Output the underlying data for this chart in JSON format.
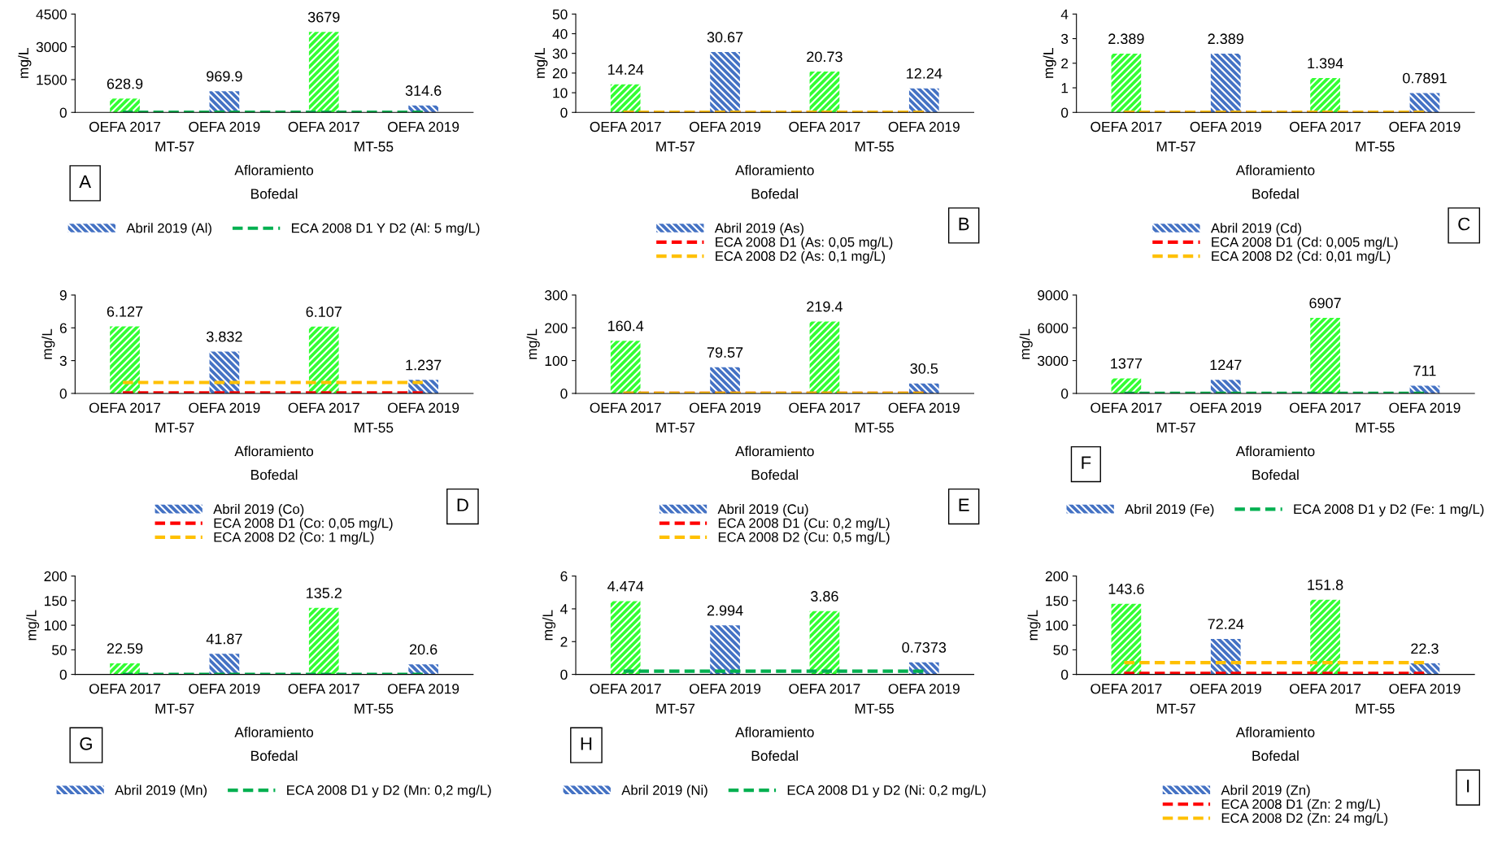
{
  "chart_data": [
    {
      "type": "bar",
      "title": "A",
      "ylabel": "mg/L",
      "categories": [
        "OEFA 2017",
        "OEFA 2019",
        "OEFA 2017",
        "OEFA 2019"
      ],
      "annotations": [
        "MT-57",
        "MT-55",
        "Afloramiento",
        "Bofedal"
      ],
      "series": [
        {
          "name": "Abril 2019 (Al)",
          "color": "#4472c4",
          "colors": [
            "#33ff33",
            "#4472c4",
            "#33ff33",
            "#4472c4"
          ],
          "values": [
            628.9,
            969.9,
            3679,
            314.6
          ]
        }
      ],
      "ylim": [
        0,
        4500
      ],
      "yticks": [
        0,
        1500,
        3000,
        4500
      ],
      "data_labels": true,
      "legend": "bottom",
      "grid": false,
      "ref_lines": [
        {
          "axis": "y",
          "value": 5,
          "label": "ECA 2008 D1 Y D2 (Al: 5 mg/L)",
          "color": "#00b050",
          "line_style": "dashed"
        }
      ]
    },
    {
      "type": "bar",
      "title": "B",
      "ylabel": "mg/L",
      "categories": [
        "OEFA 2017",
        "OEFA 2019",
        "OEFA 2017",
        "OEFA 2019"
      ],
      "annotations": [
        "MT-57",
        "MT-55",
        "Afloramiento",
        "Bofedal"
      ],
      "series": [
        {
          "name": "Abril 2019 (As)",
          "color": "#4472c4",
          "colors": [
            "#33ff33",
            "#4472c4",
            "#33ff33",
            "#4472c4"
          ],
          "values": [
            14.24,
            30.67,
            20.73,
            12.24
          ]
        }
      ],
      "ylim": [
        0,
        50
      ],
      "yticks": [
        0,
        10,
        20,
        30,
        40,
        50
      ],
      "data_labels": true,
      "legend": "bottom",
      "grid": false,
      "ref_lines": [
        {
          "axis": "y",
          "value": 0.05,
          "label": "ECA 2008 D1 (As: 0,05 mg/L)",
          "color": "#ff0000",
          "line_style": "dashed"
        },
        {
          "axis": "y",
          "value": 0.1,
          "label": "ECA 2008 D2 (As: 0,1 mg/L)",
          "color": "#ffc000",
          "line_style": "dashed"
        }
      ]
    },
    {
      "type": "bar",
      "title": "C",
      "ylabel": "mg/L",
      "categories": [
        "OEFA 2017",
        "OEFA 2019",
        "OEFA 2017",
        "OEFA 2019"
      ],
      "annotations": [
        "MT-57",
        "MT-55",
        "Afloramiento",
        "Bofedal"
      ],
      "series": [
        {
          "name": "Abril 2019 (Cd)",
          "color": "#4472c4",
          "colors": [
            "#33ff33",
            "#4472c4",
            "#33ff33",
            "#4472c4"
          ],
          "values": [
            2.389,
            2.389,
            1.394,
            0.7891
          ]
        }
      ],
      "ylim": [
        0,
        4
      ],
      "yticks": [
        0,
        1,
        2,
        3,
        4
      ],
      "data_labels": true,
      "legend": "bottom",
      "grid": false,
      "ref_lines": [
        {
          "axis": "y",
          "value": 0.005,
          "label": "ECA 2008 D1 (Cd: 0,005 mg/L)",
          "color": "#ff0000",
          "line_style": "dashed"
        },
        {
          "axis": "y",
          "value": 0.01,
          "label": "ECA 2008 D2 (Cd: 0,01 mg/L)",
          "color": "#ffc000",
          "line_style": "dashed"
        }
      ]
    },
    {
      "type": "bar",
      "title": "D",
      "ylabel": "mg/L",
      "categories": [
        "OEFA 2017",
        "OEFA 2019",
        "OEFA 2017",
        "OEFA 2019"
      ],
      "annotations": [
        "MT-57",
        "MT-55",
        "Afloramiento",
        "Bofedal"
      ],
      "series": [
        {
          "name": "Abril 2019 (Co)",
          "color": "#4472c4",
          "colors": [
            "#33ff33",
            "#4472c4",
            "#33ff33",
            "#4472c4"
          ],
          "values": [
            6.127,
            3.832,
            6.107,
            1.237
          ]
        }
      ],
      "ylim": [
        0,
        9
      ],
      "yticks": [
        0,
        3,
        6,
        9
      ],
      "data_labels": true,
      "legend": "bottom",
      "grid": false,
      "ref_lines": [
        {
          "axis": "y",
          "value": 0.05,
          "label": "ECA 2008 D1 (Co: 0,05 mg/L)",
          "color": "#ff0000",
          "line_style": "dashed"
        },
        {
          "axis": "y",
          "value": 1,
          "label": "ECA 2008 D2 (Co: 1 mg/L)",
          "color": "#ffc000",
          "line_style": "dashed"
        }
      ]
    },
    {
      "type": "bar",
      "title": "E",
      "ylabel": "mg/L",
      "categories": [
        "OEFA 2017",
        "OEFA 2019",
        "OEFA 2017",
        "OEFA 2019"
      ],
      "annotations": [
        "MT-57",
        "MT-55",
        "Afloramiento",
        "Bofedal"
      ],
      "series": [
        {
          "name": "Abril 2019 (Cu)",
          "color": "#4472c4",
          "colors": [
            "#33ff33",
            "#4472c4",
            "#33ff33",
            "#4472c4"
          ],
          "values": [
            160.4,
            79.57,
            219.4,
            30.5
          ]
        }
      ],
      "ylim": [
        0,
        300
      ],
      "yticks": [
        0,
        100,
        200,
        300
      ],
      "data_labels": true,
      "legend": "bottom",
      "grid": false,
      "ref_lines": [
        {
          "axis": "y",
          "value": 0.2,
          "label": "ECA 2008 D1 (Cu: 0,2 mg/L)",
          "color": "#ff0000",
          "line_style": "dashed"
        },
        {
          "axis": "y",
          "value": 0.5,
          "label": "ECA 2008 D2 (Cu: 0,5 mg/L)",
          "color": "#ffc000",
          "line_style": "dashed"
        }
      ]
    },
    {
      "type": "bar",
      "title": "F",
      "ylabel": "mg/L",
      "categories": [
        "OEFA 2017",
        "OEFA 2019",
        "OEFA 2017",
        "OEFA 2019"
      ],
      "annotations": [
        "MT-57",
        "MT-55",
        "Afloramiento",
        "Bofedal"
      ],
      "series": [
        {
          "name": "Abril 2019 (Fe)",
          "color": "#4472c4",
          "colors": [
            "#33ff33",
            "#4472c4",
            "#33ff33",
            "#4472c4"
          ],
          "values": [
            1377,
            1247,
            6907,
            711
          ]
        }
      ],
      "ylim": [
        0,
        9000
      ],
      "yticks": [
        0,
        3000,
        6000,
        9000
      ],
      "data_labels": true,
      "legend": "bottom",
      "grid": false,
      "ref_lines": [
        {
          "axis": "y",
          "value": 1,
          "label": "ECA 2008 D1 y D2 (Fe: 1 mg/L)",
          "color": "#00b050",
          "line_style": "dashed"
        }
      ]
    },
    {
      "type": "bar",
      "title": "G",
      "ylabel": "mg/L",
      "categories": [
        "OEFA 2017",
        "OEFA 2019",
        "OEFA 2017",
        "OEFA 2019"
      ],
      "annotations": [
        "MT-57",
        "MT-55",
        "Afloramiento",
        "Bofedal"
      ],
      "series": [
        {
          "name": "Abril 2019 (Mn)",
          "color": "#4472c4",
          "colors": [
            "#33ff33",
            "#4472c4",
            "#33ff33",
            "#4472c4"
          ],
          "values": [
            22.59,
            41.87,
            135.2,
            20.6
          ]
        }
      ],
      "ylim": [
        0,
        200
      ],
      "yticks": [
        0,
        50,
        100,
        150,
        200
      ],
      "data_labels": true,
      "legend": "bottom",
      "grid": false,
      "ref_lines": [
        {
          "axis": "y",
          "value": 0.2,
          "label": "ECA 2008 D1 y D2 (Mn: 0,2 mg/L)",
          "color": "#00b050",
          "line_style": "dashed"
        }
      ]
    },
    {
      "type": "bar",
      "title": "H",
      "ylabel": "mg/L",
      "categories": [
        "OEFA 2017",
        "OEFA 2019",
        "OEFA 2017",
        "OEFA 2019"
      ],
      "annotations": [
        "MT-57",
        "MT-55",
        "Afloramiento",
        "Bofedal"
      ],
      "series": [
        {
          "name": "Abril 2019 (Ni)",
          "color": "#4472c4",
          "colors": [
            "#33ff33",
            "#4472c4",
            "#33ff33",
            "#4472c4"
          ],
          "values": [
            4.474,
            2.994,
            3.86,
            0.7373
          ]
        }
      ],
      "ylim": [
        0,
        6
      ],
      "yticks": [
        0,
        2,
        4,
        6
      ],
      "data_labels": true,
      "legend": "bottom",
      "grid": false,
      "ref_lines": [
        {
          "axis": "y",
          "value": 0.2,
          "label": "ECA 2008 D1 y D2 (Ni: 0,2 mg/L)",
          "color": "#00b050",
          "line_style": "dashed"
        }
      ]
    },
    {
      "type": "bar",
      "title": "I",
      "ylabel": "mg/L",
      "categories": [
        "OEFA 2017",
        "OEFA 2019",
        "OEFA 2017",
        "OEFA 2019"
      ],
      "annotations": [
        "MT-57",
        "MT-55",
        "Afloramiento",
        "Bofedal"
      ],
      "series": [
        {
          "name": "Abril 2019 (Zn)",
          "color": "#4472c4",
          "colors": [
            "#33ff33",
            "#4472c4",
            "#33ff33",
            "#4472c4"
          ],
          "values": [
            143.6,
            72.24,
            151.8,
            22.3
          ]
        }
      ],
      "ylim": [
        0,
        200
      ],
      "yticks": [
        0,
        50,
        100,
        150,
        200
      ],
      "data_labels": true,
      "legend": "bottom",
      "grid": false,
      "ref_lines": [
        {
          "axis": "y",
          "value": 2,
          "label": "ECA 2008 D1 (Zn: 2 mg/L)",
          "color": "#ff0000",
          "line_style": "dashed"
        },
        {
          "axis": "y",
          "value": 24,
          "label": "ECA 2008 D2 (Zn: 24 mg/L)",
          "color": "#ffc000",
          "line_style": "dashed"
        }
      ]
    }
  ]
}
